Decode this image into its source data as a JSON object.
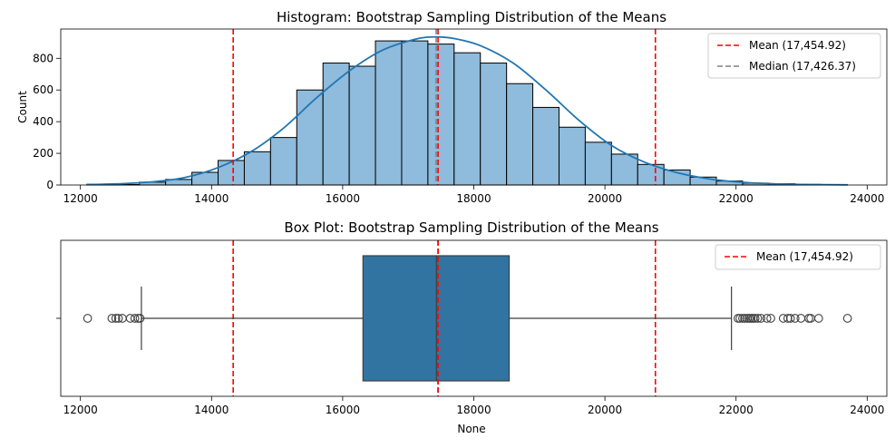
{
  "chart_data": [
    {
      "type": "histogram",
      "title": "Histogram: Bootstrap Sampling Distribution of the Means",
      "xlabel": "",
      "ylabel": "Count",
      "xlim": [
        11700,
        24300
      ],
      "ylim": [
        0,
        985
      ],
      "x_ticks": [
        12000,
        14000,
        16000,
        18000,
        20000,
        22000,
        24000
      ],
      "y_ticks": [
        0,
        200,
        400,
        600,
        800
      ],
      "bin_edges": [
        12100,
        12500,
        12900,
        13300,
        13700,
        14100,
        14500,
        14900,
        15300,
        15700,
        16100,
        16500,
        16900,
        17300,
        17700,
        18100,
        18500,
        18900,
        19300,
        19700,
        20100,
        20500,
        20900,
        21300,
        21700,
        22100,
        22500,
        22900,
        23300,
        23700
      ],
      "counts": [
        5,
        3,
        18,
        35,
        80,
        155,
        210,
        300,
        600,
        770,
        750,
        910,
        910,
        890,
        835,
        770,
        640,
        490,
        365,
        270,
        195,
        130,
        95,
        50,
        25,
        12,
        8,
        4,
        2
      ],
      "kde": {
        "x": [
          12100,
          12600,
          13100,
          13600,
          14100,
          14600,
          15100,
          15600,
          16100,
          16600,
          17100,
          17400,
          17700,
          18100,
          18600,
          19100,
          19600,
          20100,
          20600,
          21100,
          21600,
          22100,
          22600,
          23100,
          23700
        ],
        "y": [
          3,
          8,
          20,
          48,
          110,
          210,
          360,
          550,
          720,
          850,
          920,
          935,
          925,
          880,
          770,
          600,
          410,
          250,
          145,
          78,
          38,
          17,
          7,
          3,
          1
        ]
      },
      "lines": [
        {
          "label": "Mean (17,454.92)",
          "x": 17454.92,
          "color": "#ff0000",
          "style": "dashed"
        },
        {
          "label": "Median (17,426.37)",
          "x": 17426.37,
          "color": "#808080",
          "style": "dashed"
        },
        {
          "x": 14330,
          "color": "#ff0000",
          "style": "dashed"
        },
        {
          "x": 20770,
          "color": "#ff0000",
          "style": "dashed"
        }
      ],
      "legend_position": "top-right",
      "bar_color": "#8fbbdc",
      "kde_color": "#1f77b4"
    },
    {
      "type": "boxplot",
      "title": "Box Plot: Bootstrap Sampling Distribution of the Means",
      "xlabel": "None",
      "ylabel": "",
      "xlim": [
        11700,
        24300
      ],
      "x_ticks": [
        12000,
        14000,
        16000,
        18000,
        20000,
        22000,
        24000
      ],
      "whisker_low": 12930,
      "q1": 16310,
      "median": 17430,
      "q3": 18540,
      "whisker_high": 21930,
      "outliers": [
        12110,
        12480,
        12540,
        12580,
        12640,
        12760,
        12830,
        12880,
        12910,
        22030,
        22060,
        22100,
        22130,
        22170,
        22200,
        22230,
        22260,
        22290,
        22330,
        22380,
        22470,
        22530,
        22720,
        22790,
        22830,
        22900,
        22990,
        23110,
        23140,
        23260,
        23700
      ],
      "lines": [
        {
          "label": "Mean (17,454.92)",
          "x": 17454.92,
          "color": "#ff0000",
          "style": "dashed"
        },
        {
          "x": 14330,
          "color": "#ff0000",
          "style": "dashed"
        },
        {
          "x": 20770,
          "color": "#ff0000",
          "style": "dashed"
        }
      ],
      "legend_position": "top-right",
      "box_color": "#3274a1"
    }
  ]
}
